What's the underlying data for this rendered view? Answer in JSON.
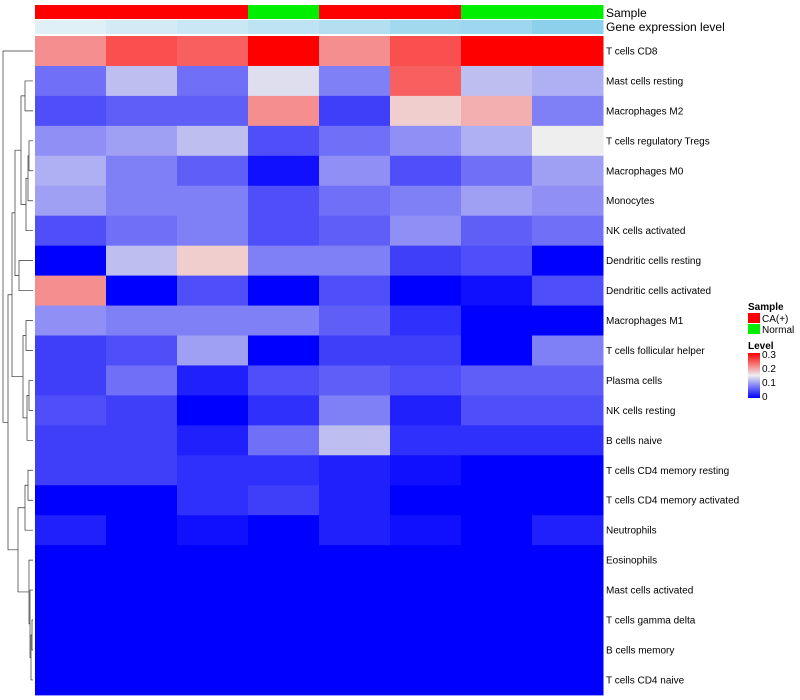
{
  "chart_data": {
    "type": "heatmap",
    "annotation_rows": [
      "Sample",
      "Gene expression level"
    ],
    "sample_groups": [
      "CA(+)",
      "CA(+)",
      "CA(+)",
      "Normal",
      "CA(+)",
      "CA(+)",
      "Normal",
      "Normal"
    ],
    "gene_expression_level": [
      0.2,
      0.3,
      0.4,
      0.5,
      0.6,
      0.75,
      0.8,
      0.95
    ],
    "rows": [
      "T cells CD8",
      "Mast cells resting",
      "Macrophages M2",
      "T cells regulatory  Tregs",
      "Macrophages M0",
      "Monocytes",
      "NK cells activated",
      "Dendritic cells resting",
      "Dendritic cells activated",
      "Macrophages M1",
      "T cells follicular helper",
      "Plasma cells",
      "NK cells resting",
      "B cells naive",
      "T cells CD4 memory resting",
      "T cells CD4 memory activated",
      "Neutrophils",
      "Eosinophils",
      "Mast cells activated",
      "T cells gamma delta",
      "B cells memory",
      "T cells CD4 naive"
    ],
    "values": [
      [
        0.21,
        0.25,
        0.24,
        0.3,
        0.21,
        0.25,
        0.3,
        0.3
      ],
      [
        0.07,
        0.12,
        0.07,
        0.14,
        0.08,
        0.24,
        0.12,
        0.11
      ],
      [
        0.05,
        0.06,
        0.06,
        0.21,
        0.04,
        0.17,
        0.19,
        0.08
      ],
      [
        0.09,
        0.1,
        0.12,
        0.05,
        0.07,
        0.09,
        0.11,
        0.15
      ],
      [
        0.11,
        0.08,
        0.06,
        0.01,
        0.09,
        0.05,
        0.07,
        0.1
      ],
      [
        0.1,
        0.08,
        0.08,
        0.05,
        0.07,
        0.08,
        0.1,
        0.09
      ],
      [
        0.05,
        0.07,
        0.08,
        0.05,
        0.06,
        0.09,
        0.06,
        0.07
      ],
      [
        0.0,
        0.12,
        0.17,
        0.08,
        0.08,
        0.04,
        0.05,
        0.0
      ],
      [
        0.21,
        0.0,
        0.05,
        0.0,
        0.05,
        0.0,
        0.01,
        0.05
      ],
      [
        0.09,
        0.08,
        0.08,
        0.08,
        0.06,
        0.03,
        0.0,
        0.0
      ],
      [
        0.04,
        0.05,
        0.1,
        0.0,
        0.04,
        0.04,
        0.0,
        0.08
      ],
      [
        0.04,
        0.07,
        0.02,
        0.05,
        0.06,
        0.05,
        0.06,
        0.06
      ],
      [
        0.05,
        0.04,
        0.0,
        0.03,
        0.08,
        0.02,
        0.05,
        0.05
      ],
      [
        0.04,
        0.04,
        0.02,
        0.07,
        0.12,
        0.03,
        0.03,
        0.03
      ],
      [
        0.04,
        0.04,
        0.03,
        0.03,
        0.02,
        0.01,
        0.0,
        0.0
      ],
      [
        0.0,
        0.0,
        0.03,
        0.04,
        0.02,
        0.0,
        0.0,
        0.0
      ],
      [
        0.02,
        0.0,
        0.01,
        0.0,
        0.02,
        0.01,
        0.0,
        0.02
      ],
      [
        0.0,
        0.0,
        0.0,
        0.0,
        0.0,
        0.0,
        0.0,
        0.0
      ],
      [
        0.0,
        0.0,
        0.0,
        0.0,
        0.0,
        0.0,
        0.0,
        0.0
      ],
      [
        0.0,
        0.0,
        0.0,
        0.0,
        0.0,
        0.0,
        0.0,
        0.0
      ],
      [
        0.0,
        0.0,
        0.0,
        0.0,
        0.0,
        0.0,
        0.0,
        0.0
      ],
      [
        0.0,
        0.0,
        0.0,
        0.0,
        0.0,
        0.0,
        0.0,
        0.0
      ]
    ],
    "color_scale": {
      "min": 0,
      "mid": 0.15,
      "max": 0.3,
      "low": "#0000FF",
      "midColor": "#EEEEEE",
      "high": "#FF0000"
    },
    "legend": {
      "sample_title": "Sample",
      "sample_entries": [
        {
          "label": "CA(+)",
          "color": "#FF0000"
        },
        {
          "label": "Normal",
          "color": "#00EE00"
        }
      ],
      "level_title": "Level",
      "level_ticks": [
        "0.3",
        "0.2",
        "0.1",
        "0"
      ],
      "placement": "right"
    },
    "expression_colors": {
      "low": "#F5F8FA",
      "high": "#87CEEB"
    },
    "row_dendrogram": true
  }
}
